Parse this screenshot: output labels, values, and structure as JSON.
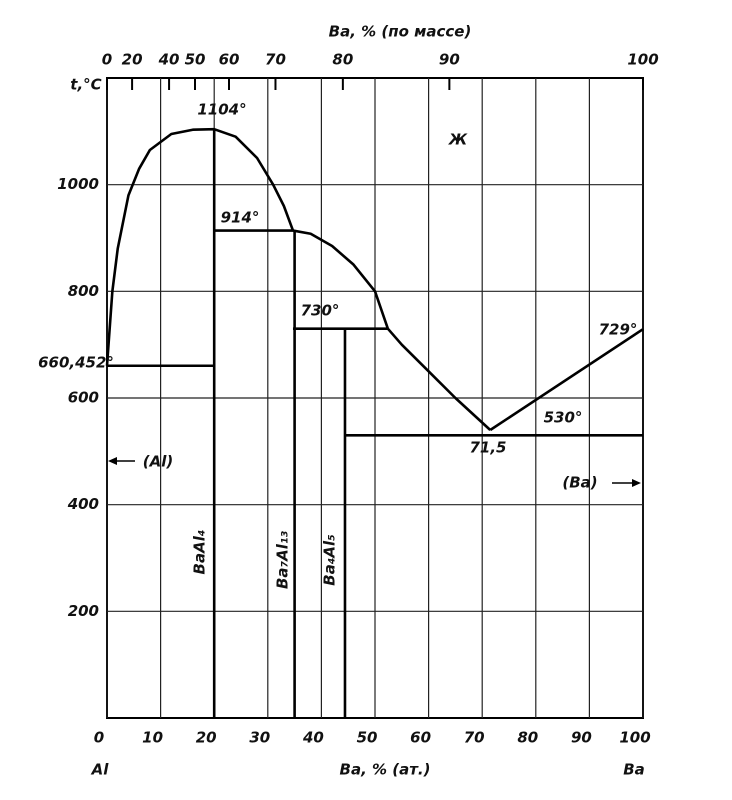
{
  "chart_data": {
    "type": "line",
    "x_label": "Ba, % (ат.)",
    "x2_label": "Ba, % (по массе)",
    "y_label": "t,°C",
    "x_start_label": "Al",
    "x_end_label": "Ba",
    "xlim": [
      0,
      100
    ],
    "xticks": [
      0,
      10,
      20,
      30,
      40,
      50,
      60,
      70,
      80,
      90,
      100
    ],
    "x2ticks": [
      0,
      20,
      40,
      50,
      60,
      70,
      80,
      90,
      100
    ],
    "ylim": [
      0,
      1200
    ],
    "yticks": [
      200,
      400,
      600,
      800,
      1000
    ],
    "grid": true,
    "color": "#000000",
    "series": [
      {
        "x": [
          0,
          1,
          2,
          4,
          6,
          8,
          12,
          16,
          20,
          24,
          28,
          31,
          33,
          34.7
        ],
        "values": [
          660.452,
          800,
          880,
          980,
          1030,
          1065,
          1095,
          1103,
          1104,
          1090,
          1050,
          1000,
          960,
          914
        ]
      },
      {
        "x": [
          34.7,
          38,
          42,
          46,
          50,
          52.4,
          55,
          60,
          65,
          71.5
        ],
        "values": [
          914,
          908,
          885,
          850,
          800,
          730,
          700,
          650,
          600,
          540
        ]
      },
      {
        "x": [
          71.5,
          100
        ],
        "values": [
          540,
          729
        ]
      },
      {
        "x": [
          0,
          20
        ],
        "values": [
          660.452,
          660.452
        ]
      },
      {
        "x": [
          20,
          34.7
        ],
        "values": [
          914,
          914
        ]
      },
      {
        "x": [
          34.7,
          52.4
        ],
        "values": [
          730,
          730
        ]
      },
      {
        "x": [
          44.4,
          100
        ],
        "values": [
          530,
          530
        ]
      },
      {
        "x": [
          20,
          20
        ],
        "values": [
          0,
          1104
        ]
      },
      {
        "x": [
          35,
          35
        ],
        "values": [
          0,
          914
        ]
      },
      {
        "x": [
          44.4,
          44.4
        ],
        "values": [
          0,
          730
        ]
      }
    ],
    "annotations": [
      "1104°",
      "914°",
      "730°",
      "729°",
      "530°",
      "660,452°",
      "71,5",
      "Ж",
      "(Al)",
      "(Ba)",
      "BaAl₄",
      "Ba₇Al₁₃",
      "Ba₄Al₅"
    ]
  }
}
